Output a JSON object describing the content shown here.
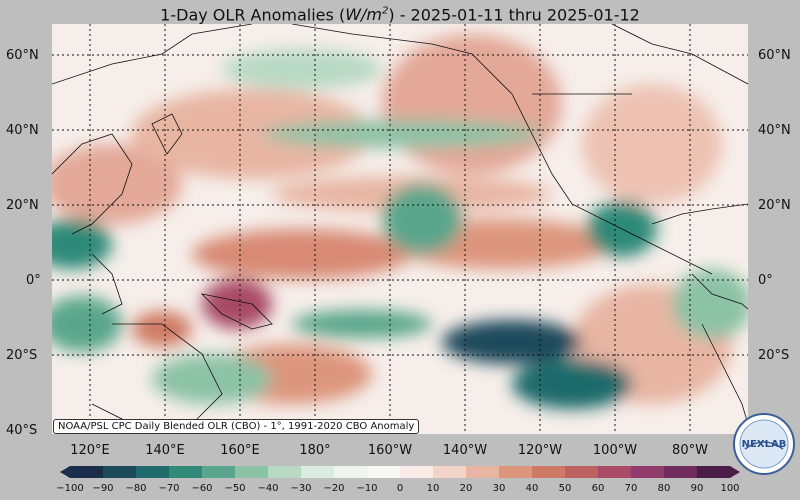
{
  "title_main": "1-Day OLR Anomalies (",
  "title_unit_base": "W/m",
  "title_unit_exp": "2",
  "title_close": ")",
  "title_dates": " - 2025-01-11 thru 2025-01-12",
  "credit": "NOAA/PSL CPC Daily Blended OLR (CBO) - 1°, 1991-2020 CBO Anomaly",
  "logo_text": "NEXLAB",
  "lat_labels": [
    "60°N",
    "40°N",
    "20°N",
    "0°",
    "20°S",
    "40°S"
  ],
  "lat_labels_right": [
    "60°N",
    "40°N",
    "20°N",
    "0°",
    "20°S"
  ],
  "lon_labels": [
    "120°E",
    "140°E",
    "160°E",
    "180°",
    "160°W",
    "140°W",
    "120°W",
    "100°W",
    "80°W"
  ],
  "colorbar": {
    "ticks": [
      "−100",
      "−90",
      "−80",
      "−70",
      "−60",
      "−50",
      "−40",
      "−30",
      "−20",
      "−10",
      "0",
      "10",
      "20",
      "30",
      "40",
      "50",
      "60",
      "70",
      "80",
      "90",
      "100"
    ],
    "colors_negative": [
      "#1a2d4a",
      "#1f4a5c",
      "#1f6b6b",
      "#2f8a78",
      "#5aa68c",
      "#8cc2a6",
      "#b8d9c4",
      "#dbebe0",
      "#eef5f0",
      "#f7f7f5"
    ],
    "colors_positive": [
      "#f9ece8",
      "#f2d3c8",
      "#e8b5a3",
      "#dd967e",
      "#cf7a64",
      "#bd6060",
      "#a84a68",
      "#8f3a6a",
      "#6f2a5e",
      "#4a1d48"
    ]
  },
  "colors": {
    "neutral": "#f7f4f1",
    "land_line": "#111111",
    "grid_line": "#111111"
  }
}
